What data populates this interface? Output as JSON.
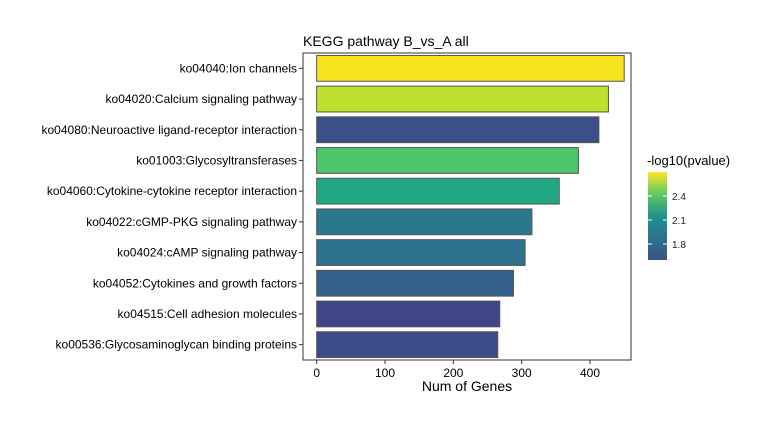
{
  "chart_data": {
    "type": "bar",
    "orientation": "horizontal",
    "title": "KEGG pathway B_vs_A all",
    "xlabel": "Num of Genes",
    "ylabel": "",
    "xlim": [
      -20,
      460
    ],
    "xticks": [
      0,
      100,
      200,
      300,
      400
    ],
    "grid": false,
    "legend": {
      "title": "-log10(pvalue)",
      "position": "right",
      "ticks": [
        2.4,
        2.1,
        1.8
      ],
      "range": [
        1.6,
        2.7
      ],
      "colormap": "viridis"
    },
    "categories": [
      "ko04040:Ion channels",
      "ko04020:Calcium signaling pathway",
      "ko04080:Neuroactive ligand-receptor interaction",
      "ko01003:Glycosyltransferases",
      "ko04060:Cytokine-cytokine receptor interaction",
      "ko04022:cGMP-PKG signaling pathway",
      "ko04024:cAMP signaling pathway",
      "ko04052:Cytokines and growth factors",
      "ko04515:Cell adhesion molecules",
      "ko00536:Glycosaminoglycan binding proteins"
    ],
    "values": [
      450,
      427,
      413,
      383,
      355,
      315,
      305,
      288,
      268,
      265
    ],
    "colors": [
      "#f5e31e",
      "#bde22e",
      "#3c4f8a",
      "#50c46a",
      "#22a784",
      "#2a788e",
      "#2d718e",
      "#35608d",
      "#414487",
      "#3d4b89"
    ]
  }
}
